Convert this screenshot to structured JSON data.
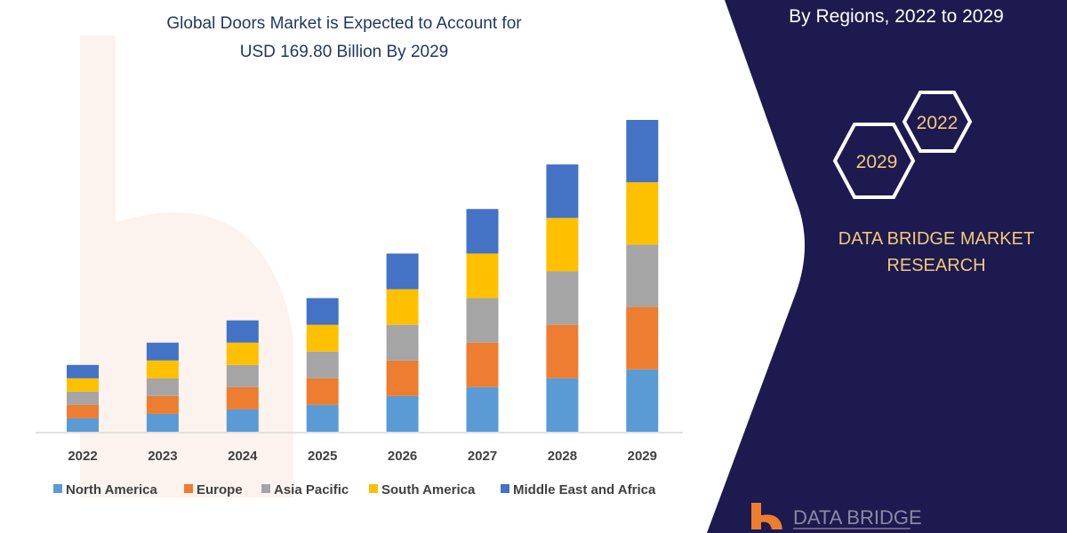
{
  "chart_data": {
    "type": "bar",
    "stacked": true,
    "title": "Global Doors Market is Expected to Account for",
    "subtitle": "USD 169.80 Billion By 2029",
    "categories": [
      "2022",
      "2023",
      "2024",
      "2025",
      "2026",
      "2027",
      "2028",
      "2029"
    ],
    "value_units": "relative (no y-axis printed)",
    "series": [
      {
        "name": "North America",
        "color": "#5b9bd5",
        "values": [
          3,
          4,
          5,
          6,
          8,
          10,
          12,
          14
        ]
      },
      {
        "name": "Europe",
        "color": "#ed7d31",
        "values": [
          3,
          4,
          5,
          6,
          8,
          10,
          12,
          14
        ]
      },
      {
        "name": "Asia Pacific",
        "color": "#a5a5a5",
        "values": [
          3,
          4,
          5,
          6,
          8,
          10,
          12,
          14
        ]
      },
      {
        "name": "South America",
        "color": "#ffc000",
        "values": [
          3,
          4,
          5,
          6,
          8,
          10,
          12,
          14
        ]
      },
      {
        "name": "Middle East and Africa",
        "color": "#4472c4",
        "values": [
          3,
          4,
          5,
          6,
          8,
          10,
          12,
          14
        ]
      }
    ],
    "ylim": [
      0,
      70
    ],
    "grid": false,
    "legend_placement": "bottom"
  },
  "panel": {
    "heading": "By Regions, 2022 to 2029",
    "hex_years": [
      "2022",
      "2029"
    ],
    "brand_line1": "DATA BRIDGE MARKET",
    "brand_line2": "RESEARCH",
    "logo_text": "DATA BRIDGE",
    "background": "#1c1a4f",
    "accent": "#f3c97a"
  },
  "watermark": "DATA BRIDGE"
}
